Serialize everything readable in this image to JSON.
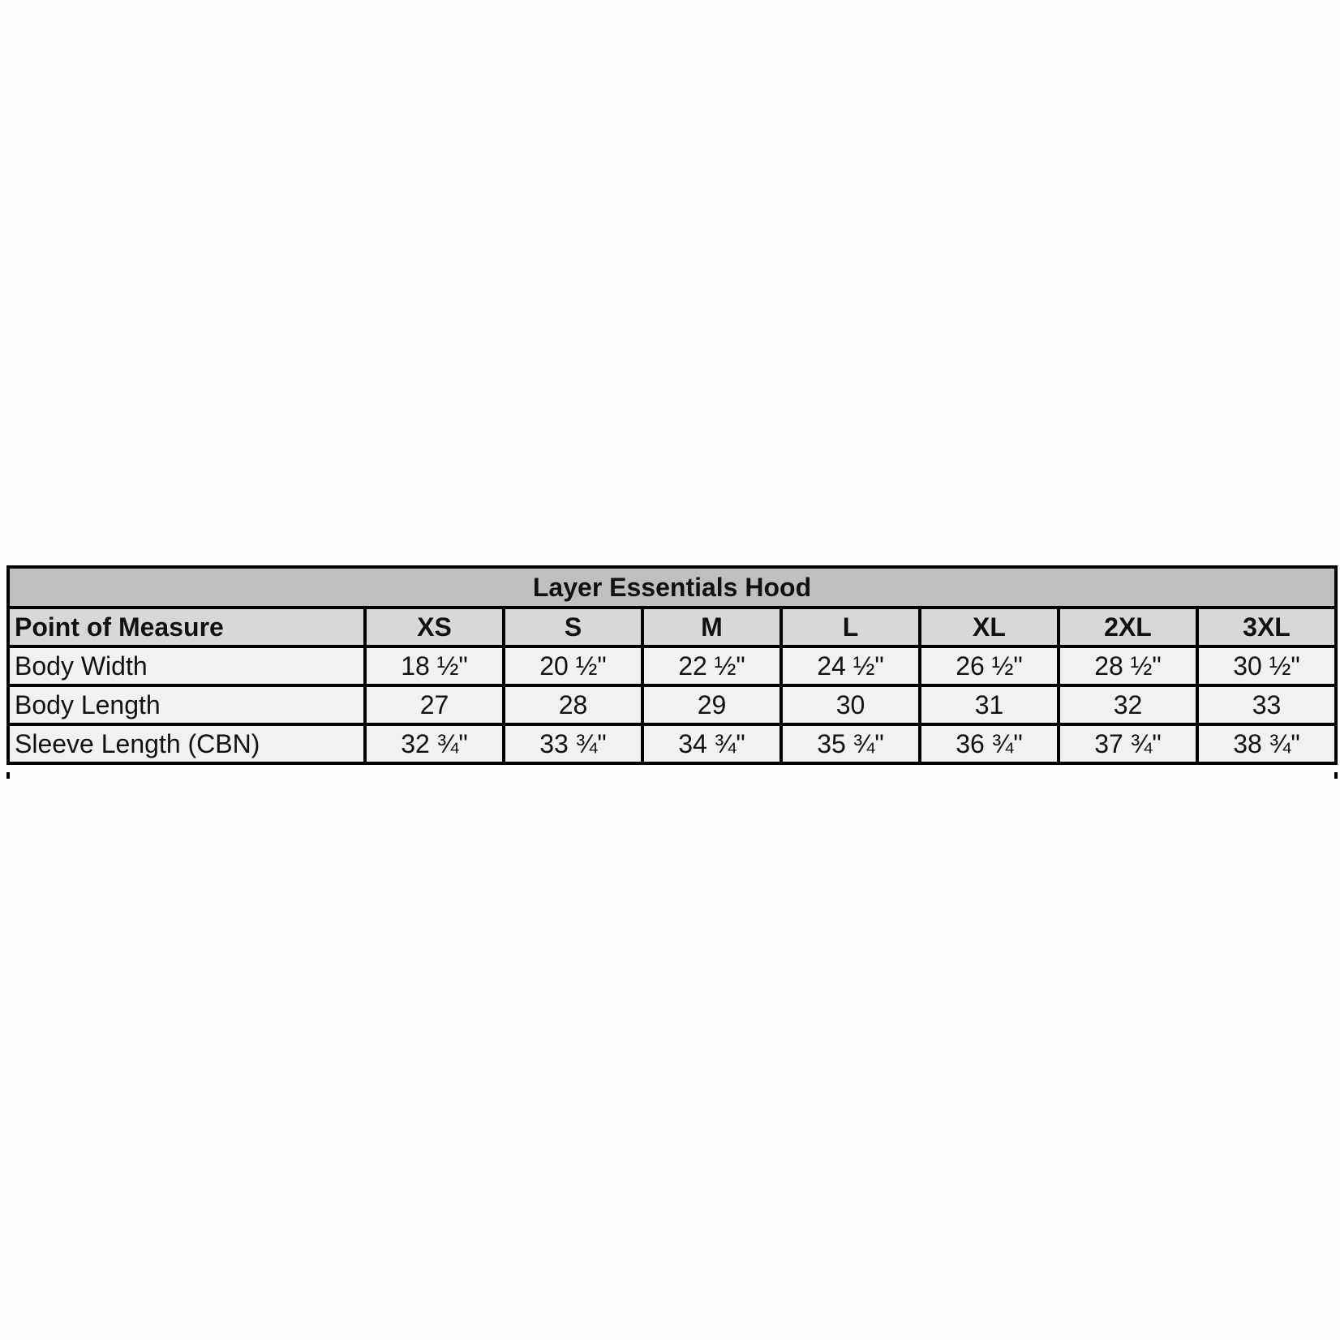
{
  "table": {
    "title": "Layer Essentials Hood",
    "header_label": "Point of Measure",
    "sizes": [
      "XS",
      "S",
      "M",
      "L",
      "XL",
      "2XL",
      "3XL"
    ],
    "rows": [
      {
        "label": "Body Width",
        "values": [
          "18 ½\"",
          "20 ½\"",
          "22 ½\"",
          "24 ½\"",
          "26 ½\"",
          "28 ½\"",
          "30 ½\""
        ]
      },
      {
        "label": "Body Length",
        "values": [
          "27",
          "28",
          "29",
          "30",
          "31",
          "32",
          "33"
        ]
      },
      {
        "label": "Sleeve Length (CBN)",
        "values": [
          "32 ¾\"",
          "33 ¾\"",
          "34 ¾\"",
          "35 ¾\"",
          "36 ¾\"",
          "37 ¾\"",
          "38 ¾\""
        ]
      }
    ]
  }
}
